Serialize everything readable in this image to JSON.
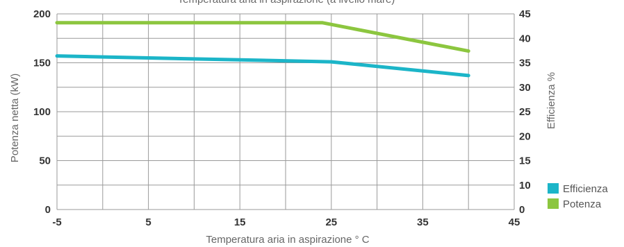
{
  "chart_data": {
    "type": "line",
    "title": "Temperatura aria in aspirazione (a livello mare)",
    "xlabel": "Temperatura aria in aspirazione ° C",
    "ylabel_left": "Potenza netta (kW)",
    "ylabel_right": "Efficienza %",
    "x_ticks": [
      "-5",
      "5",
      "15",
      "25",
      "35",
      "45"
    ],
    "y_left_ticks": [
      "0",
      "50",
      "100",
      "150",
      "200"
    ],
    "y_right_ticks": [
      "0",
      "10",
      "15",
      "20",
      "25",
      "30",
      "35",
      "40",
      "45"
    ],
    "xlim": [
      -5,
      45
    ],
    "y_left_lim": [
      0,
      200
    ],
    "grid": true,
    "legend_position": "bottom-right",
    "series": [
      {
        "name": "Efficienza",
        "color": "#1cb5c8",
        "axis": "left",
        "x": [
          -5,
          25,
          40
        ],
        "y": [
          157,
          151,
          137
        ]
      },
      {
        "name": "Potenza",
        "color": "#8cc63f",
        "axis": "left",
        "x": [
          -5,
          24,
          40
        ],
        "y": [
          191,
          191,
          162
        ]
      }
    ]
  }
}
